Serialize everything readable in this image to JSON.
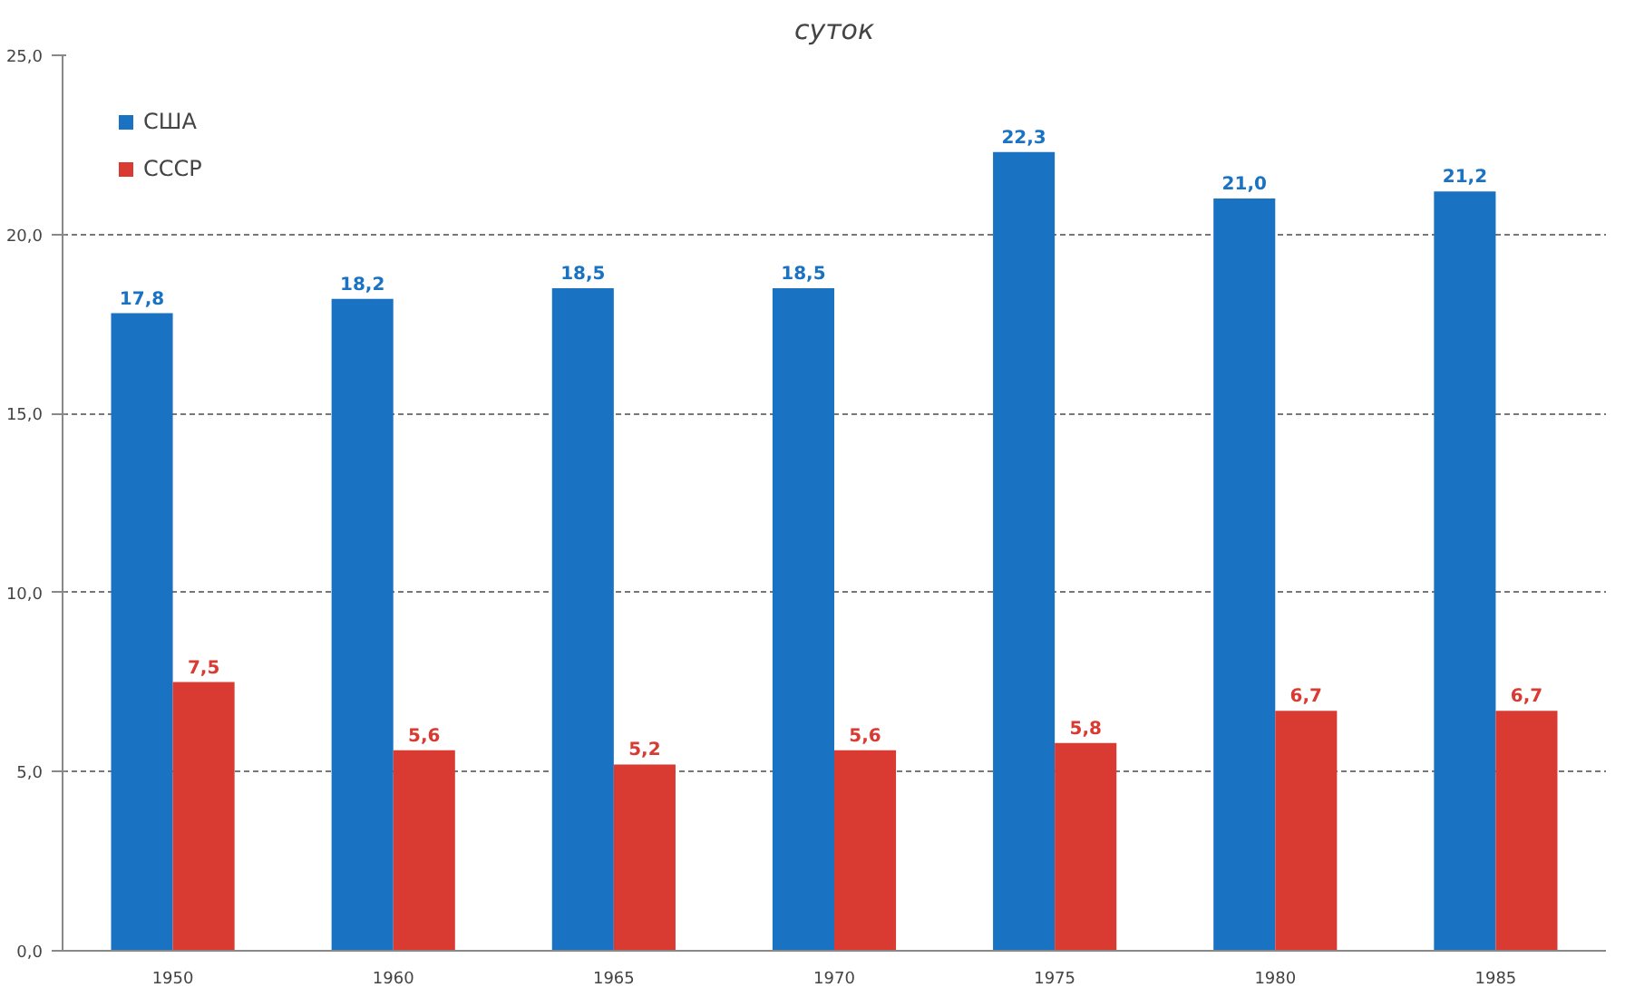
{
  "chart_data": {
    "type": "bar",
    "title": "суток",
    "categories": [
      "1950",
      "1960",
      "1965",
      "1970",
      "1975",
      "1980",
      "1985"
    ],
    "series": [
      {
        "name": "США",
        "color": "#1a73c2",
        "values": [
          17.8,
          18.2,
          18.5,
          18.5,
          22.3,
          21.0,
          21.2
        ],
        "value_labels": [
          "17,8",
          "18,2",
          "18,5",
          "18,5",
          "22,3",
          "21,0",
          "21,2"
        ]
      },
      {
        "name": "СССР",
        "color": "#d93a32",
        "values": [
          7.5,
          5.6,
          5.2,
          5.6,
          5.8,
          6.7,
          6.7
        ],
        "value_labels": [
          "7,5",
          "5,6",
          "5,2",
          "5,6",
          "5,8",
          "6,7",
          "6,7"
        ]
      }
    ],
    "ylim": [
      0,
      25
    ],
    "yticks": [
      {
        "value": 0,
        "label": "0,0"
      },
      {
        "value": 5,
        "label": "5,0"
      },
      {
        "value": 10,
        "label": "10,0"
      },
      {
        "value": 15,
        "label": "15,0"
      },
      {
        "value": 20,
        "label": "20,0"
      },
      {
        "value": 25,
        "label": "25,0"
      }
    ],
    "grid": "y",
    "legend": "top left"
  }
}
